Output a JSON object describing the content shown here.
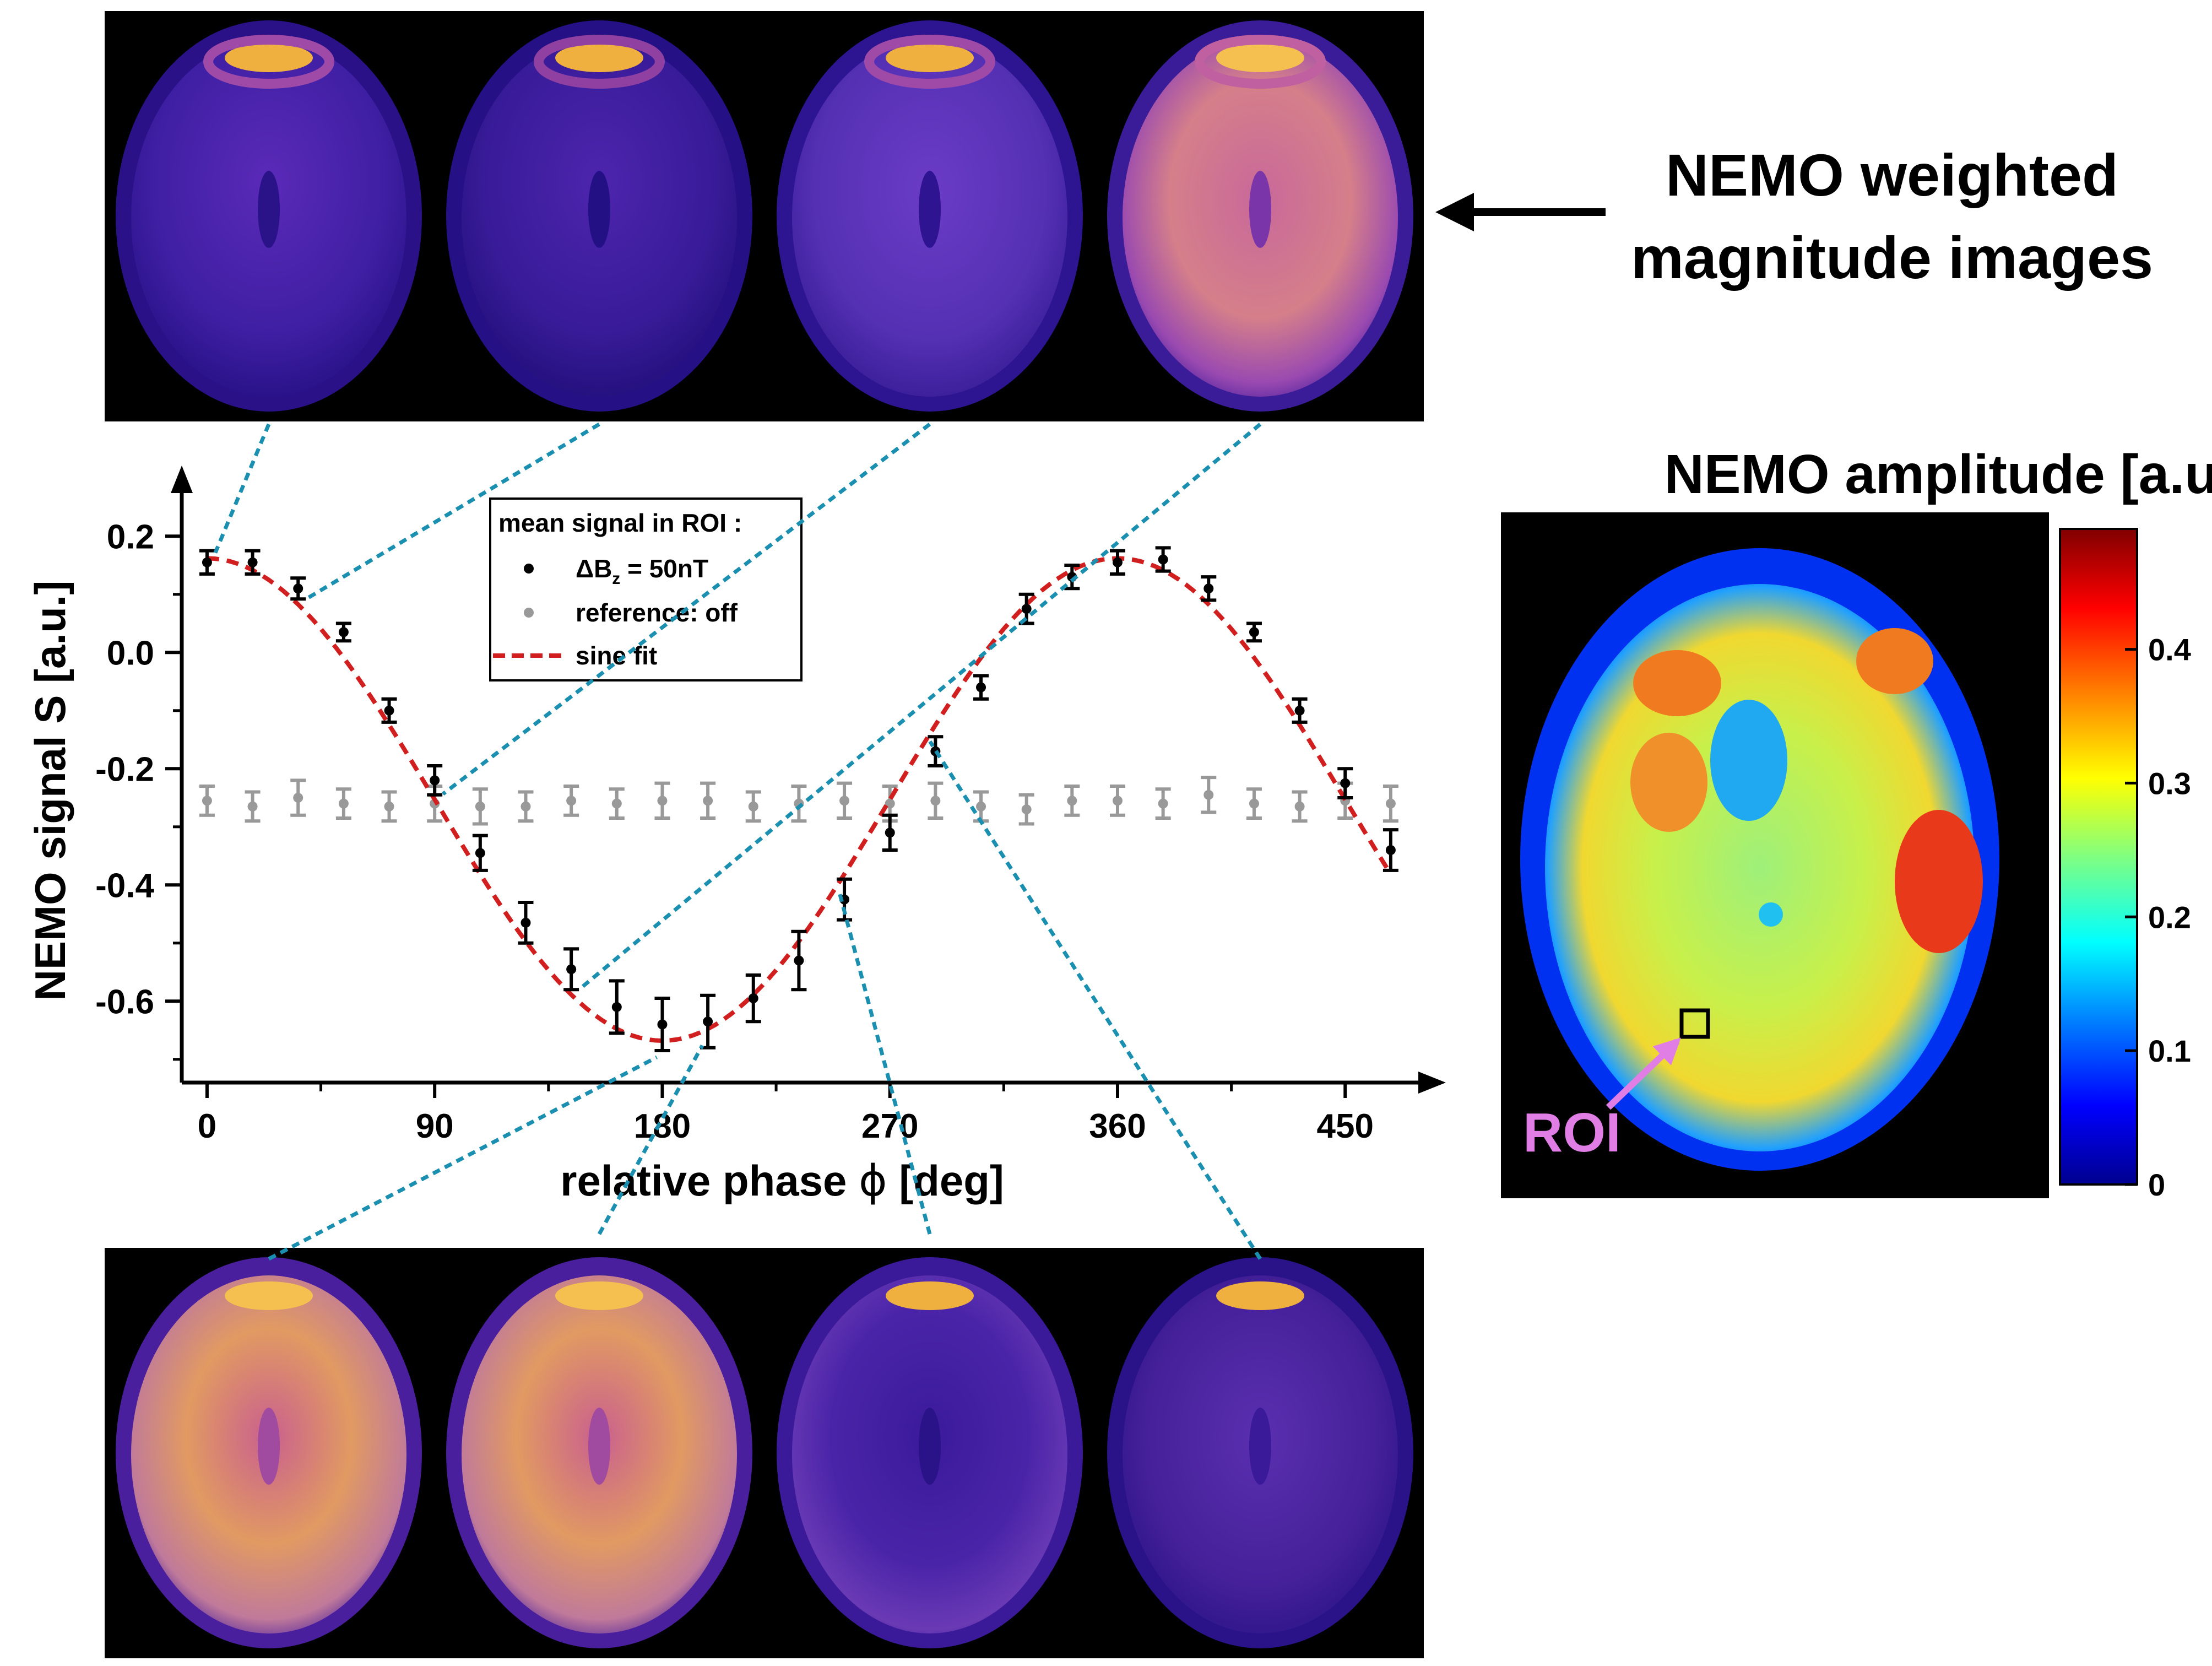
{
  "top_label_line1": "NEMO weighted",
  "top_label_line2": "magnitude images",
  "amplitude_title": "NEMO amplitude [a.u.]",
  "roi_label": "ROI",
  "colorbar": {
    "ticks": [
      0,
      0.1,
      0.2,
      0.3,
      0.4
    ],
    "tick_labels": [
      "0",
      "0.1",
      "0.2",
      "0.3",
      "0.4"
    ],
    "range": [
      0,
      0.49
    ],
    "colors": [
      "#00008f",
      "#0000ff",
      "#0080ff",
      "#00ffff",
      "#80ff80",
      "#ffff00",
      "#ff8000",
      "#ff0000",
      "#800000"
    ]
  },
  "legend": {
    "title": "mean signal in ROI",
    "title_suffix": ":",
    "entry_signal_prefix": "ΔB",
    "entry_signal_sub": "z",
    "entry_signal_suffix": " = 50nT",
    "entry_reference": "reference: off",
    "entry_fit": "sine fit"
  },
  "chart_data": {
    "type": "scatter",
    "xlabel_text": "relative phase",
    "xlabel_symbol": "ϕ",
    "xlabel_unit": "[deg]",
    "ylabel": "NEMO signal S [a.u.]",
    "xlim": [
      -10,
      480
    ],
    "ylim": [
      -0.74,
      0.26
    ],
    "x_ticks": [
      0,
      90,
      180,
      270,
      360,
      450
    ],
    "x_tick_labels": [
      "0",
      "90",
      "180",
      "270",
      "360",
      "450"
    ],
    "y_ticks": [
      0.2,
      0.0,
      -0.2,
      -0.4,
      -0.6
    ],
    "y_tick_labels": [
      "0.2",
      "0.0",
      "-0.2",
      "-0.4",
      "-0.6"
    ],
    "colors": {
      "signal": "#000000",
      "reference": "#999999",
      "fit": "#d11f1f",
      "connector": "#1a8fb0"
    },
    "series": [
      {
        "name": "signal",
        "x": [
          0,
          18,
          36,
          54,
          72,
          90,
          108,
          126,
          144,
          162,
          180,
          198,
          216,
          234,
          252,
          270,
          288,
          306,
          324,
          342,
          360,
          378,
          396,
          414,
          432,
          450,
          468
        ],
        "y": [
          0.155,
          0.155,
          0.11,
          0.035,
          -0.1,
          -0.22,
          -0.345,
          -0.465,
          -0.545,
          -0.61,
          -0.64,
          -0.635,
          -0.595,
          -0.53,
          -0.425,
          -0.31,
          -0.17,
          -0.06,
          0.075,
          0.13,
          0.155,
          0.16,
          0.11,
          0.035,
          -0.1,
          -0.225,
          -0.34
        ],
        "err": [
          0.02,
          0.02,
          0.018,
          0.015,
          0.02,
          0.025,
          0.03,
          0.035,
          0.035,
          0.045,
          0.045,
          0.045,
          0.04,
          0.05,
          0.035,
          0.03,
          0.025,
          0.02,
          0.025,
          0.02,
          0.02,
          0.02,
          0.02,
          0.015,
          0.02,
          0.025,
          0.035
        ]
      },
      {
        "name": "reference",
        "x": [
          0,
          18,
          36,
          54,
          72,
          90,
          108,
          126,
          144,
          162,
          180,
          198,
          216,
          234,
          252,
          270,
          288,
          306,
          324,
          342,
          360,
          378,
          396,
          414,
          432,
          450,
          468
        ],
        "y": [
          -0.255,
          -0.265,
          -0.25,
          -0.26,
          -0.265,
          -0.26,
          -0.265,
          -0.265,
          -0.255,
          -0.26,
          -0.255,
          -0.255,
          -0.265,
          -0.26,
          -0.255,
          -0.26,
          -0.255,
          -0.265,
          -0.27,
          -0.255,
          -0.255,
          -0.26,
          -0.245,
          -0.26,
          -0.265,
          -0.255,
          -0.26
        ],
        "err": [
          0.025,
          0.025,
          0.03,
          0.025,
          0.025,
          0.03,
          0.03,
          0.025,
          0.025,
          0.025,
          0.03,
          0.03,
          0.025,
          0.03,
          0.03,
          0.03,
          0.03,
          0.025,
          0.025,
          0.025,
          0.025,
          0.025,
          0.03,
          0.025,
          0.025,
          0.03,
          0.03
        ]
      }
    ],
    "fit": {
      "function": "offset + amplitude*cos(phi - phase)",
      "offset": -0.253,
      "amplitude": 0.415,
      "phase_deg": 0
    }
  }
}
